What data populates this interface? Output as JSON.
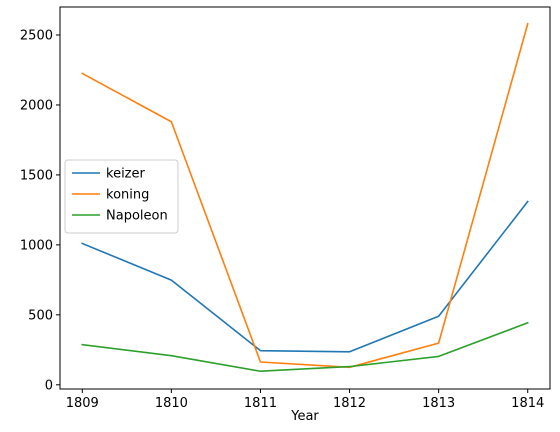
{
  "chart_data": {
    "type": "line",
    "title": "",
    "xlabel": "Year",
    "ylabel": "",
    "x": [
      1809,
      1810,
      1811,
      1812,
      1813,
      1814
    ],
    "x_tick_labels": [
      "1809",
      "1810",
      "1811",
      "1812",
      "1813",
      "1814"
    ],
    "y_ticks": [
      0,
      500,
      1000,
      1500,
      2000,
      2500
    ],
    "y_tick_labels": [
      "0",
      "500",
      "1000",
      "1500",
      "2000",
      "2500"
    ],
    "xlim": [
      1808.75,
      1814.25
    ],
    "ylim": [
      -30,
      2700
    ],
    "grid": false,
    "legend_position": "center-left",
    "series": [
      {
        "name": "keizer",
        "color": "#1f77b4",
        "values": [
          1010,
          748,
          244,
          236,
          490,
          1310
        ]
      },
      {
        "name": "koning",
        "color": "#ff7f0e",
        "values": [
          2225,
          1880,
          163,
          125,
          298,
          2580
        ]
      },
      {
        "name": "Napoleon",
        "color": "#2ca02c",
        "values": [
          287,
          208,
          97,
          130,
          203,
          443
        ]
      }
    ]
  }
}
